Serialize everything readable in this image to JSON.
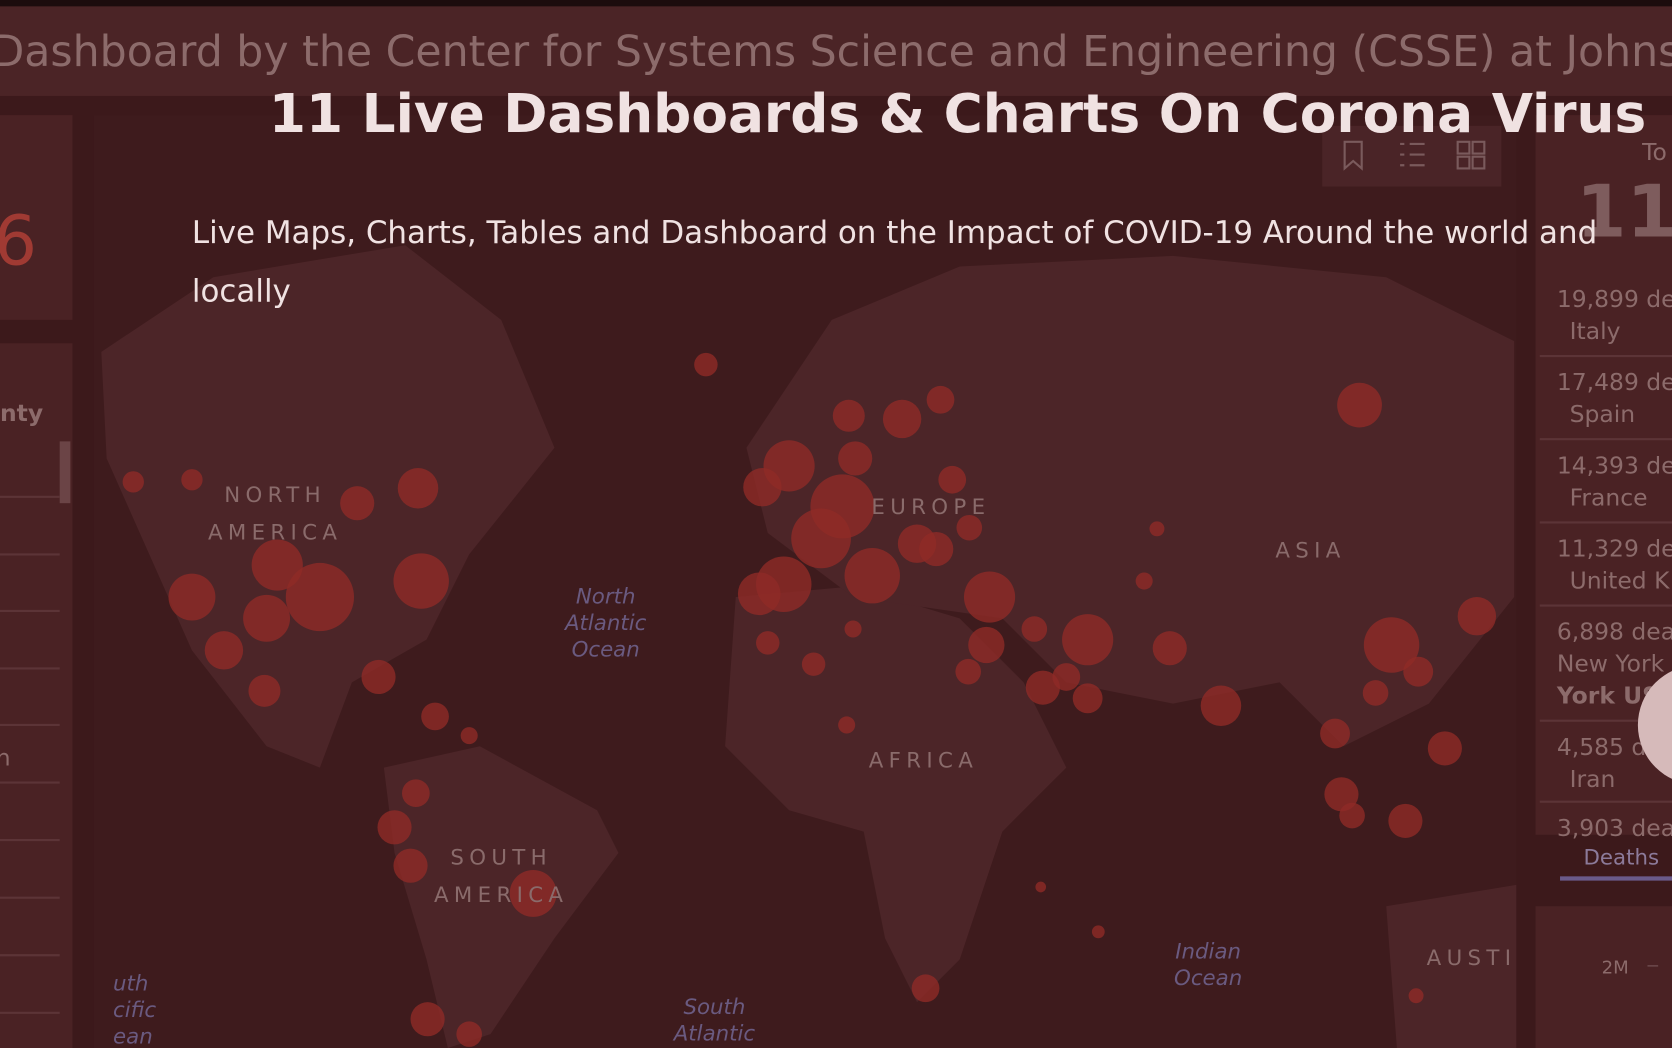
{
  "background": {
    "banner": "Dashboard by the Center for Systems Science and Engineering (CSSE) at Johns Hopk",
    "left_panel": {
      "count": "6",
      "label": "nty",
      "item": "n"
    },
    "map_labels": [
      {
        "lines": [
          "NORTH",
          "AMERICA"
        ],
        "style": "region"
      },
      {
        "lines": [
          "EUROPE"
        ],
        "style": "region"
      },
      {
        "lines": [
          "ASIA"
        ],
        "style": "region"
      },
      {
        "lines": [
          "AFRICA"
        ],
        "style": "region"
      },
      {
        "lines": [
          "SOUTH",
          "AMERICA"
        ],
        "style": "region"
      },
      {
        "lines": [
          "AUSTI"
        ],
        "style": "region"
      },
      {
        "lines": [
          "North",
          "Atlantic",
          "Ocean"
        ],
        "style": "ocean"
      },
      {
        "lines": [
          "Indian",
          "Ocean"
        ],
        "style": "ocean"
      },
      {
        "lines": [
          "South",
          "Atlantic"
        ],
        "style": "ocean"
      },
      {
        "lines": [
          "uth",
          "cific",
          "ean"
        ],
        "style": "ocean"
      }
    ],
    "right_panel": {
      "heading": "To",
      "total": "11",
      "rows": [
        {
          "lines": [
            "19,899 de",
            "Italy"
          ]
        },
        {
          "lines": [
            "17,489 de",
            "Spain"
          ]
        },
        {
          "lines": [
            "14,393 de",
            "France"
          ]
        },
        {
          "lines": [
            "11,329 de",
            "United K"
          ]
        },
        {
          "lines": [
            "6,898 dea",
            "New York",
            "York US"
          ]
        },
        {
          "lines": [
            "4,585 d",
            "Iran"
          ]
        },
        {
          "lines": [
            "3,903 dea"
          ]
        }
      ],
      "tab": "Deaths",
      "axis_tick": "2M"
    }
  },
  "hero": {
    "title": "11 Live Dashboards & Charts On Corona Virus",
    "subtitle_lines": [
      "Live Maps, Charts, Tables and Dashboard on the Impact of COVID-19 Around the world and",
      "locally"
    ]
  }
}
